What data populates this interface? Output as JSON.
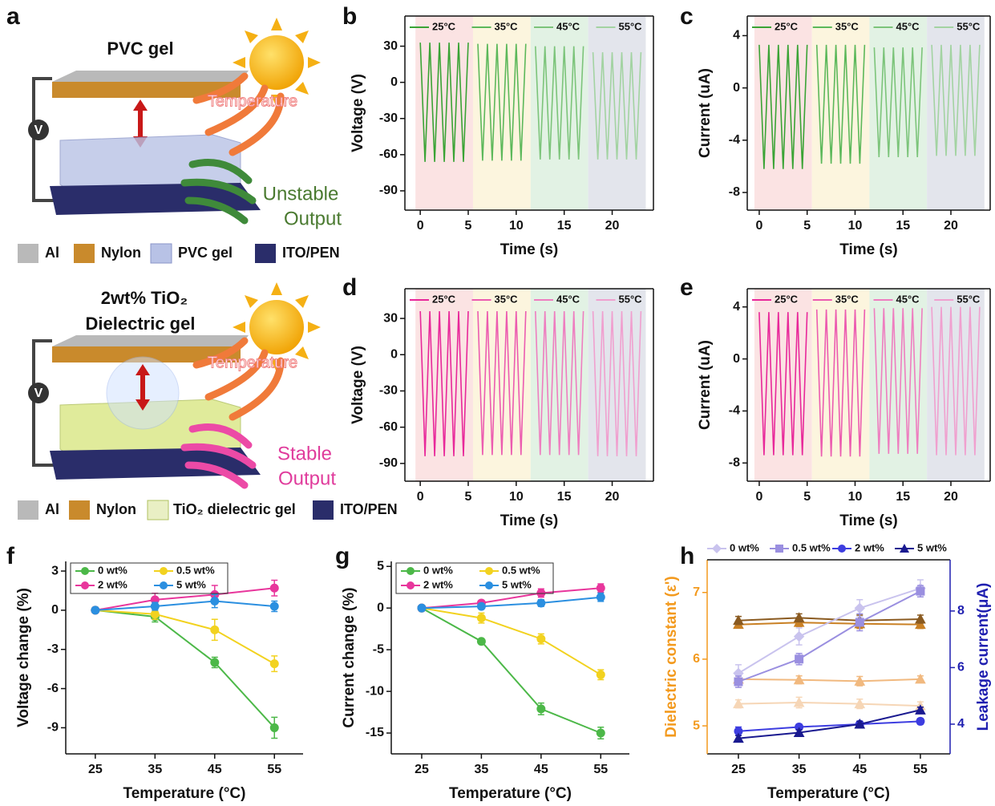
{
  "panel_labels": [
    "a",
    "b",
    "c",
    "d",
    "e",
    "f",
    "g",
    "h"
  ],
  "schematic_top": {
    "title": [
      "PVC gel"
    ],
    "heat": "Temperature",
    "output": [
      "Unstable",
      "Output"
    ],
    "meter": "V",
    "legend": [
      "Al",
      "Nylon",
      "PVC gel",
      "ITO/PEN"
    ]
  },
  "schematic_bottom": {
    "title": [
      "2wt% TiO₂",
      "Dielectric gel"
    ],
    "heat": "Temperature",
    "output": [
      "Stable",
      "Output"
    ],
    "meter": "V",
    "legend": [
      "Al",
      "Nylon",
      "TiO₂ dielectric gel",
      "ITO/PEN"
    ]
  },
  "chart_data": [
    {
      "type": "line",
      "x_label": "Time (s)",
      "y_label": "Voltage (V)",
      "xlim": [
        -1.6,
        24.3
      ],
      "xticks": [
        0,
        5,
        10,
        15,
        20
      ],
      "ylim": [
        -106,
        55
      ],
      "yticks": [
        30,
        0,
        -30,
        -60,
        -90
      ],
      "legend": "top",
      "series": [
        {
          "name": "25°C",
          "color": "#3aa335",
          "band_color": "#fbe3e3",
          "x": [
            0,
            0.5,
            1,
            1.5,
            2,
            2.5,
            3,
            3.5,
            4,
            4.5,
            5
          ],
          "values": [
            33,
            -66,
            33,
            -66,
            33,
            -66,
            33,
            -66,
            33,
            -66,
            33
          ]
        },
        {
          "name": "35°C",
          "color": "#5cb85a",
          "band_color": "#fcf5de",
          "x": [
            6,
            6.5,
            7,
            7.5,
            8,
            8.5,
            9,
            9.5,
            10,
            10.5,
            11
          ],
          "values": [
            32,
            -65,
            32,
            -65,
            32,
            -65,
            32,
            -65,
            32,
            -65,
            32
          ]
        },
        {
          "name": "45°C",
          "color": "#7cc47a",
          "band_color": "#e2f2e4",
          "x": [
            12,
            12.5,
            13,
            13.5,
            14,
            14.5,
            15,
            15.5,
            16,
            16.5,
            17
          ],
          "values": [
            30,
            -64,
            30,
            -64,
            30,
            -64,
            30,
            -64,
            30,
            -64,
            30
          ]
        },
        {
          "name": "55°C",
          "color": "#a3d3a2",
          "band_color": "#e3e5ec",
          "x": [
            18,
            18.5,
            19,
            19.5,
            20,
            20.5,
            21,
            21.5,
            22,
            22.5,
            23
          ],
          "values": [
            25,
            -64,
            25,
            -64,
            25,
            -64,
            25,
            -64,
            25,
            -64,
            25
          ]
        }
      ]
    },
    {
      "type": "line",
      "x_label": "Time (s)",
      "y_label": "Current (uA)",
      "xlim": [
        -1.25,
        24.1
      ],
      "xticks": [
        0,
        5,
        10,
        15,
        20
      ],
      "ylim": [
        -9.35,
        5.5
      ],
      "yticks": [
        4,
        0,
        -4,
        -8
      ],
      "legend": "top",
      "series": [
        {
          "name": "25°C",
          "color": "#3aa335",
          "band_color": "#fbe3e3",
          "x": [
            0,
            0.5,
            1,
            1.5,
            2,
            2.5,
            3,
            3.5,
            4,
            4.5,
            5
          ],
          "values": [
            3.3,
            -6.2,
            3.3,
            -6.2,
            3.3,
            -6.2,
            3.3,
            -6.2,
            3.3,
            -6.2,
            3.3
          ]
        },
        {
          "name": "35°C",
          "color": "#5cb85a",
          "band_color": "#fcf5de",
          "x": [
            6,
            6.5,
            7,
            7.5,
            8,
            8.5,
            9,
            9.5,
            10,
            10.5,
            11
          ],
          "values": [
            3.3,
            -5.8,
            3.3,
            -5.8,
            3.3,
            -5.8,
            3.3,
            -5.8,
            3.3,
            -5.8,
            3.3
          ]
        },
        {
          "name": "45°C",
          "color": "#7cc47a",
          "band_color": "#e2f2e4",
          "x": [
            12,
            12.5,
            13,
            13.5,
            14,
            14.5,
            15,
            15.5,
            16,
            16.5,
            17
          ],
          "values": [
            3.1,
            -5.3,
            3.1,
            -5.3,
            3.1,
            -5.3,
            3.1,
            -5.3,
            3.1,
            -5.3,
            3.1
          ]
        },
        {
          "name": "55°C",
          "color": "#a3d3a2",
          "band_color": "#e3e5ec",
          "x": [
            18,
            18.5,
            19,
            19.5,
            20,
            20.5,
            21,
            21.5,
            22,
            22.5,
            23
          ],
          "values": [
            3.3,
            -5.2,
            3.3,
            -5.2,
            3.3,
            -5.2,
            3.3,
            -5.2,
            3.3,
            -5.2,
            3.3
          ]
        }
      ]
    },
    {
      "type": "line",
      "x_label": "Time (s)",
      "y_label": "Voltage (V)",
      "xlim": [
        -1.6,
        24.3
      ],
      "xticks": [
        0,
        5,
        10,
        15,
        20
      ],
      "ylim": [
        -104.7,
        54.6
      ],
      "yticks": [
        30,
        0,
        -30,
        -60,
        -90
      ],
      "legend": "top",
      "series": [
        {
          "name": "25°C",
          "color": "#e8289a",
          "band_color": "#fbe3e3",
          "x": [
            0,
            0.5,
            1,
            1.5,
            2,
            2.5,
            3,
            3.5,
            4,
            4.5,
            5
          ],
          "values": [
            36,
            -84,
            36,
            -84,
            36,
            -84,
            36,
            -84,
            36,
            -84,
            36
          ]
        },
        {
          "name": "35°C",
          "color": "#ec5cb0",
          "band_color": "#fcf5de",
          "x": [
            6,
            6.5,
            7,
            7.5,
            8,
            8.5,
            9,
            9.5,
            10,
            10.5,
            11
          ],
          "values": [
            36,
            -83,
            36,
            -83,
            36,
            -83,
            36,
            -83,
            36,
            -83,
            36
          ]
        },
        {
          "name": "45°C",
          "color": "#ee7ec0",
          "band_color": "#e2f2e4",
          "x": [
            12,
            12.5,
            13,
            13.5,
            14,
            14.5,
            15,
            15.5,
            16,
            16.5,
            17
          ],
          "values": [
            36,
            -83,
            36,
            -83,
            36,
            -83,
            36,
            -83,
            36,
            -83,
            36
          ]
        },
        {
          "name": "55°C",
          "color": "#f0a0cf",
          "band_color": "#e3e5ec",
          "x": [
            18,
            18.5,
            19,
            19.5,
            20,
            20.5,
            21,
            21.5,
            22,
            22.5,
            23
          ],
          "values": [
            36,
            -84,
            36,
            -84,
            36,
            -84,
            36,
            -84,
            36,
            -84,
            36
          ]
        }
      ]
    },
    {
      "type": "line",
      "x_label": "Time (s)",
      "y_label": "Current (uA)",
      "xlim": [
        -1.25,
        24.1
      ],
      "xticks": [
        0,
        5,
        10,
        15,
        20
      ],
      "ylim": [
        -9.4,
        5.4
      ],
      "yticks": [
        4,
        0,
        -4,
        -8
      ],
      "legend": "top",
      "series": [
        {
          "name": "25°C",
          "color": "#e8289a",
          "band_color": "#fbe3e3",
          "x": [
            0,
            0.5,
            1,
            1.5,
            2,
            2.5,
            3,
            3.5,
            4,
            4.5,
            5
          ],
          "values": [
            3.6,
            -7.4,
            3.6,
            -7.4,
            3.6,
            -7.4,
            3.6,
            -7.4,
            3.6,
            -7.4,
            3.6
          ]
        },
        {
          "name": "35°C",
          "color": "#ec5cb0",
          "band_color": "#fcf5de",
          "x": [
            6,
            6.5,
            7,
            7.5,
            8,
            8.5,
            9,
            9.5,
            10,
            10.5,
            11
          ],
          "values": [
            3.8,
            -7.5,
            3.8,
            -7.5,
            3.8,
            -7.5,
            3.8,
            -7.5,
            3.8,
            -7.5,
            3.8
          ]
        },
        {
          "name": "45°C",
          "color": "#ee7ec0",
          "band_color": "#e2f2e4",
          "x": [
            12,
            12.5,
            13,
            13.5,
            14,
            14.5,
            15,
            15.5,
            16,
            16.5,
            17
          ],
          "values": [
            3.9,
            -7.3,
            3.9,
            -7.3,
            3.9,
            -7.3,
            3.9,
            -7.3,
            3.9,
            -7.3,
            3.9
          ]
        },
        {
          "name": "55°C",
          "color": "#f0a0cf",
          "band_color": "#e3e5ec",
          "x": [
            18,
            18.5,
            19,
            19.5,
            20,
            20.5,
            21,
            21.5,
            22,
            22.5,
            23
          ],
          "values": [
            4.0,
            -7.4,
            4.0,
            -7.4,
            4.0,
            -7.4,
            4.0,
            -7.4,
            4.0,
            -7.4,
            4.0
          ]
        }
      ]
    },
    {
      "type": "line",
      "x_label": "Temperature (°C)",
      "y_label": "Voltage change (%)",
      "x": [
        25,
        35,
        45,
        55
      ],
      "xlim": [
        20.05,
        59.8
      ],
      "xticks": [
        25,
        35,
        45,
        55
      ],
      "ylim": [
        -11,
        3.74
      ],
      "yticks": [
        3,
        0,
        -3,
        -6,
        -9
      ],
      "legend": "upper left",
      "series": [
        {
          "name": "0 wt%",
          "color": "#4cb848",
          "marker": "circle",
          "values": [
            0,
            -0.5,
            -4,
            -9
          ],
          "errors": [
            0.2,
            0.4,
            0.4,
            0.8
          ]
        },
        {
          "name": "0.5 wt%",
          "color": "#f2d21f",
          "marker": "circle",
          "values": [
            0,
            -0.3,
            -1.5,
            -4.1
          ],
          "errors": [
            0.2,
            0.4,
            0.8,
            0.6
          ]
        },
        {
          "name": "2 wt%",
          "color": "#e8369c",
          "marker": "circle",
          "values": [
            0,
            0.8,
            1.2,
            1.7
          ],
          "errors": [
            0.2,
            0.5,
            0.7,
            0.6
          ]
        },
        {
          "name": "5 wt%",
          "color": "#2b8fe0",
          "marker": "circle",
          "values": [
            0,
            0.3,
            0.7,
            0.3
          ],
          "errors": [
            0.2,
            0.3,
            0.5,
            0.4
          ]
        }
      ]
    },
    {
      "type": "line",
      "x_label": "Temperature (°C)",
      "y_label": "Current change (%)",
      "x": [
        25,
        35,
        45,
        55
      ],
      "xlim": [
        19.9,
        59.8
      ],
      "xticks": [
        25,
        35,
        45,
        55
      ],
      "ylim": [
        -17.5,
        5.6
      ],
      "yticks": [
        5,
        0,
        -5,
        -10,
        -15
      ],
      "legend": "upper left",
      "series": [
        {
          "name": "0 wt%",
          "color": "#4cb848",
          "marker": "circle",
          "values": [
            0,
            -4,
            -12.1,
            -15
          ],
          "errors": [
            0.2,
            0.3,
            0.7,
            0.7
          ]
        },
        {
          "name": "0.5 wt%",
          "color": "#f2d21f",
          "marker": "circle",
          "values": [
            0,
            -1.2,
            -3.7,
            -8
          ],
          "errors": [
            0.2,
            0.6,
            0.6,
            0.6
          ]
        },
        {
          "name": "2 wt%",
          "color": "#e8369c",
          "marker": "circle",
          "values": [
            0,
            0.6,
            1.8,
            2.4
          ],
          "errors": [
            0.2,
            0.3,
            0.5,
            0.5
          ]
        },
        {
          "name": "5 wt%",
          "color": "#2b8fe0",
          "marker": "circle",
          "values": [
            0,
            0.2,
            0.6,
            1.3
          ],
          "errors": [
            0.2,
            0.3,
            0.4,
            0.5
          ]
        }
      ]
    },
    {
      "type": "line",
      "x_label": "Temperature (°C)",
      "y_label": "Dielectric constant (ε')",
      "y2_label": "Leakage current(μA)",
      "y_color": "#f39a1e",
      "y2_color": "#1f1fb0",
      "x": [
        25,
        35,
        45,
        55
      ],
      "xlim": [
        19.85,
        59.9
      ],
      "xticks": [
        25,
        35,
        45,
        55
      ],
      "ylim": [
        4.58,
        7.49
      ],
      "yticks": [
        5,
        6,
        7
      ],
      "y2lim": [
        2.95,
        9.81
      ],
      "y2ticks": [
        4,
        6,
        8
      ],
      "legend": "above",
      "series": [
        {
          "color": "#f6d6b6",
          "marker": "triangle",
          "values": [
            5.33,
            5.35,
            5.33,
            5.3
          ],
          "errors": [
            0.06,
            0.08,
            0.07,
            0.06
          ]
        },
        {
          "color": "#f1b97f",
          "marker": "triangle",
          "values": [
            5.7,
            5.69,
            5.67,
            5.7
          ],
          "errors": [
            0.07,
            0.06,
            0.07,
            0.05
          ]
        },
        {
          "color": "#c98024",
          "marker": "triangle",
          "values": [
            6.52,
            6.55,
            6.53,
            6.52
          ],
          "errors": [
            0.05,
            0.06,
            0.07,
            0.06
          ]
        },
        {
          "color": "#8a5a20",
          "marker": "triangle",
          "values": [
            6.58,
            6.62,
            6.58,
            6.6
          ],
          "errors": [
            0.06,
            0.06,
            0.08,
            0.06
          ]
        },
        {
          "name": "0 wt%",
          "axis": "y2",
          "color": "#c9c3ee",
          "marker": "diamond",
          "values": [
            5.8,
            7.1,
            8.1,
            8.8
          ],
          "errors": [
            0.3,
            0.3,
            0.3,
            0.3
          ]
        },
        {
          "name": "0.5 wt%",
          "axis": "y2",
          "color": "#9a8fe0",
          "marker": "square",
          "values": [
            5.5,
            6.3,
            7.6,
            8.7
          ],
          "errors": [
            0.2,
            0.2,
            0.3,
            0.2
          ]
        },
        {
          "name": "2 wt%",
          "axis": "y2",
          "color": "#3d3de0",
          "marker": "circle",
          "values": [
            3.75,
            3.9,
            4.0,
            4.1
          ],
          "errors": [
            0.15,
            0.1,
            0.1,
            0.1
          ]
        },
        {
          "name": "5 wt%",
          "axis": "y2",
          "color": "#1a1a90",
          "marker": "triangle",
          "values": [
            3.5,
            3.7,
            4.0,
            4.5
          ],
          "errors": [
            0.1,
            0.1,
            0.1,
            0.1
          ]
        }
      ]
    }
  ]
}
